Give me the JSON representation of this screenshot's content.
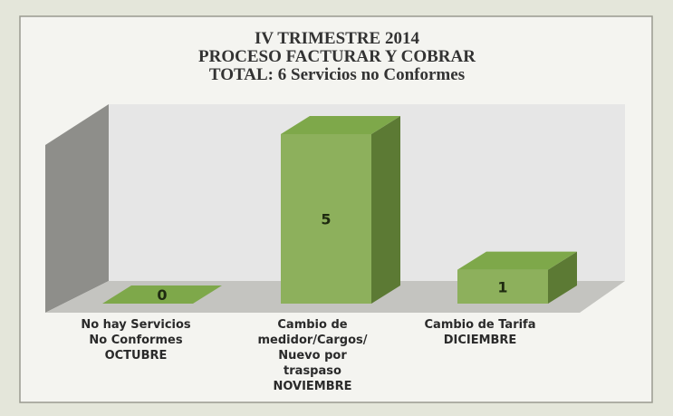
{
  "chart_data": {
    "type": "bar3d",
    "title": [
      "IV TRIMESTRE 2014",
      "PROCESO FACTURAR Y COBRAR",
      "TOTAL:  6 Servicios no Conformes"
    ],
    "categories": [
      [
        "No hay Servicios",
        "No Conformes",
        "OCTUBRE"
      ],
      [
        "Cambio de",
        "medidor/Cargos/",
        "Nuevo por",
        "traspaso",
        "NOVIEMBRE"
      ],
      [
        "Cambio de Tarifa",
        "DICIEMBRE"
      ]
    ],
    "values": [
      0,
      5,
      1
    ],
    "color": "#8db05c"
  }
}
